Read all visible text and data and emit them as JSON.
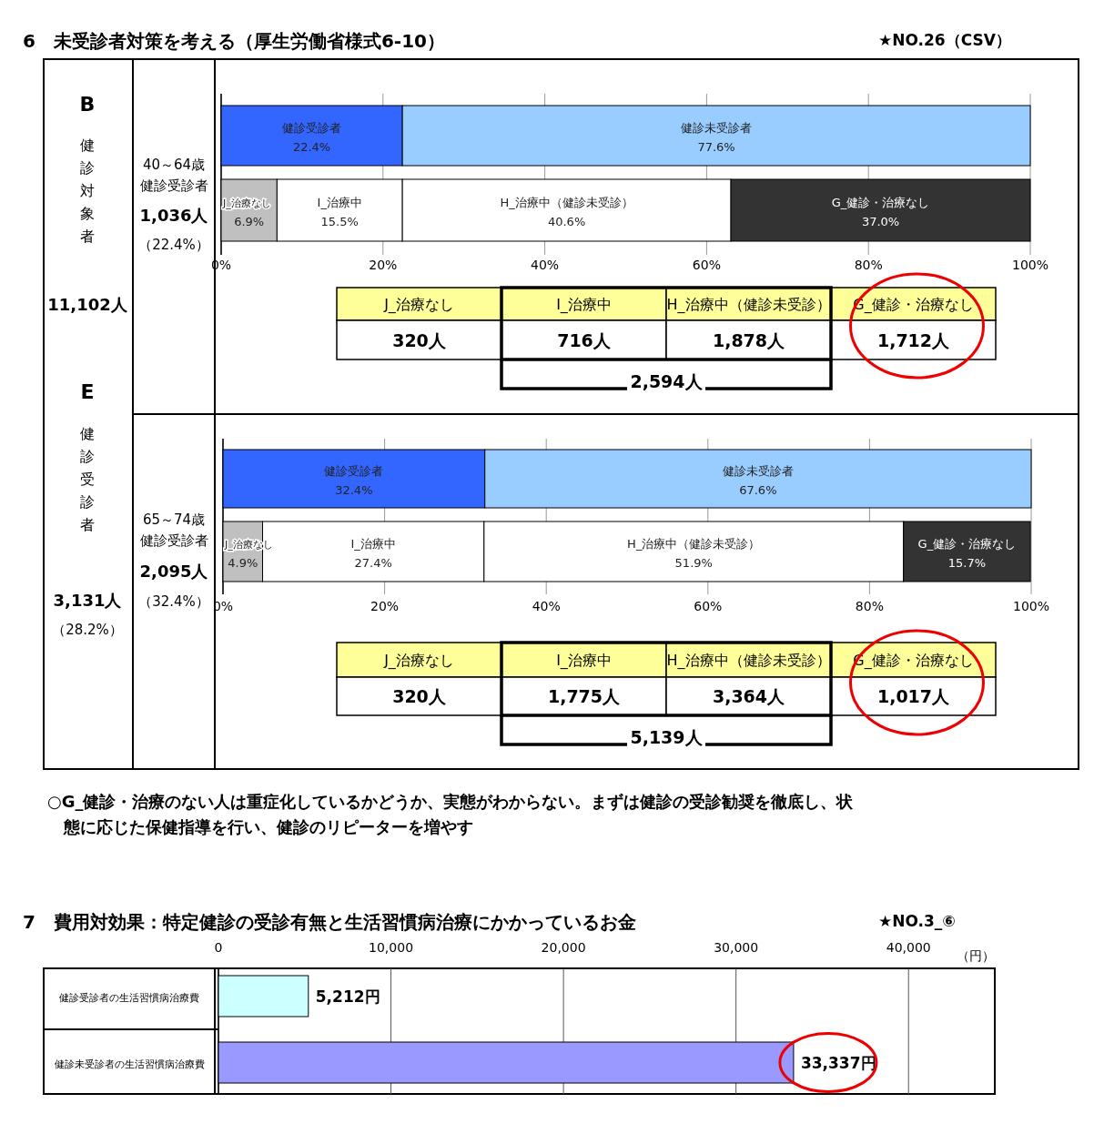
{
  "chart_data": [
    {
      "type": "other",
      "title": "6　未受診者対策を考える（厚生労働省様式6-10）",
      "annotations": [
        "★NO.26（CSV）",
        "B",
        "健診対象者",
        "11,102人",
        "E",
        "健診受診者",
        "3,131人",
        "（28.2%）"
      ]
    },
    {
      "type": "bar",
      "orientation": "horizontal",
      "stacked": true,
      "categories": [
        null,
        null
      ],
      "xlim": [
        0,
        100
      ],
      "xticks": [
        {
          "value": 0,
          "label": "0%"
        },
        {
          "value": 20,
          "label": "20%"
        },
        {
          "value": 40,
          "label": "40%"
        },
        {
          "value": 60,
          "label": "60%"
        },
        {
          "value": 80,
          "label": "80%"
        },
        {
          "value": 100,
          "label": "100%"
        }
      ],
      "grid": "x",
      "annotations": [
        "40～64歳",
        "健診受診者",
        "1,036人",
        "（22.4%）"
      ],
      "series": [
        {
          "name": "健診受診者",
          "color": "#3366ff",
          "values": [
            22.4,
            null
          ],
          "value_labels": [
            "22.4%",
            null
          ]
        },
        {
          "name": "健診未受診者",
          "color": "#99ccff",
          "values": [
            77.6,
            null
          ],
          "value_labels": [
            "77.6%",
            null
          ]
        },
        {
          "name": "J_治療なし",
          "color": "#c0c0c0",
          "values": [
            null,
            6.9
          ],
          "value_labels": [
            null,
            "6.9%"
          ]
        },
        {
          "name": "I_治療中",
          "color": "#ffffff",
          "values": [
            null,
            15.5
          ],
          "value_labels": [
            null,
            "15.5%"
          ]
        },
        {
          "name": "H_治療中（健診未受診）",
          "color": "#ffffff",
          "values": [
            null,
            40.6
          ],
          "value_labels": [
            null,
            "40.6%"
          ]
        },
        {
          "name": "G_健診・治療なし",
          "color": "#333333",
          "values": [
            null,
            37.0
          ],
          "value_labels": [
            null,
            "37.0%"
          ]
        }
      ]
    },
    {
      "type": "other",
      "categories": [
        "J_治療なし",
        "I_治療中",
        "H_治療中（健診未受診）",
        "G_健診・治療なし"
      ],
      "values": [
        320,
        716,
        1878,
        1712
      ],
      "value_labels": [
        "320人",
        "716人",
        "1,878人",
        "1,712人"
      ],
      "annotations": [
        "2,594人"
      ]
    },
    {
      "type": "bar",
      "orientation": "horizontal",
      "stacked": true,
      "categories": [
        null,
        null
      ],
      "xlim": [
        0,
        100
      ],
      "xticks": [
        {
          "value": 0,
          "label": "0%"
        },
        {
          "value": 20,
          "label": "20%"
        },
        {
          "value": 40,
          "label": "40%"
        },
        {
          "value": 60,
          "label": "60%"
        },
        {
          "value": 80,
          "label": "80%"
        },
        {
          "value": 100,
          "label": "100%"
        }
      ],
      "grid": "x",
      "annotations": [
        "65～74歳",
        "健診受診者",
        "2,095人",
        "（32.4%）"
      ],
      "series": [
        {
          "name": "健診受診者",
          "color": "#3366ff",
          "values": [
            32.4,
            null
          ],
          "value_labels": [
            "32.4%",
            null
          ]
        },
        {
          "name": "健診未受診者",
          "color": "#99ccff",
          "values": [
            67.6,
            null
          ],
          "value_labels": [
            "67.6%",
            null
          ]
        },
        {
          "name": "J_治療なし",
          "color": "#c0c0c0",
          "values": [
            null,
            4.9
          ],
          "value_labels": [
            null,
            "4.9%"
          ]
        },
        {
          "name": "I_治療中",
          "color": "#ffffff",
          "values": [
            null,
            27.4
          ],
          "value_labels": [
            null,
            "27.4%"
          ]
        },
        {
          "name": "H_治療中（健診未受診）",
          "color": "#ffffff",
          "values": [
            null,
            51.9
          ],
          "value_labels": [
            null,
            "51.9%"
          ]
        },
        {
          "name": "G_健診・治療なし",
          "color": "#333333",
          "values": [
            null,
            15.7
          ],
          "value_labels": [
            null,
            "15.7%"
          ]
        }
      ]
    },
    {
      "type": "other",
      "categories": [
        "J_治療なし",
        "I_治療中",
        "H_治療中（健診未受診）",
        "G_健診・治療なし"
      ],
      "values": [
        320,
        1775,
        3364,
        1017
      ],
      "value_labels": [
        "320人",
        "1,775人",
        "3,364人",
        "1,017人"
      ],
      "annotations": [
        "5,139人"
      ]
    },
    {
      "type": "other",
      "annotations": [
        "○G_健診・治療のない人は重症化しているかどうか、実態がわからない。まずは健診の受診勧奨を徹底し、状態に応じた保健指導を行い、健診のリピーターを増やす"
      ]
    },
    {
      "type": "bar",
      "orientation": "horizontal",
      "title": "7　費用対効果：特定健診の受診有無と生活習慣病治療にかかっているお金",
      "xlabel": "（円）",
      "annotations": [
        "★NO.3_⑥"
      ],
      "categories": [
        "健診受診者の生活習慣病治療費",
        "健診未受診者の生活習慣病治療費"
      ],
      "values": [
        5212,
        33337
      ],
      "colors": [
        "#ccffff",
        "#9999ff"
      ],
      "value_labels": [
        "5,212円",
        "33,337円"
      ],
      "xlim": [
        0,
        45000
      ],
      "xticks": [
        0,
        {
          "value": 10000,
          "label": "10,000"
        },
        {
          "value": 20000,
          "label": "20,000"
        },
        {
          "value": 30000,
          "label": "30,000"
        },
        {
          "value": 40000,
          "label": "40,000"
        }
      ],
      "grid": "x"
    }
  ]
}
